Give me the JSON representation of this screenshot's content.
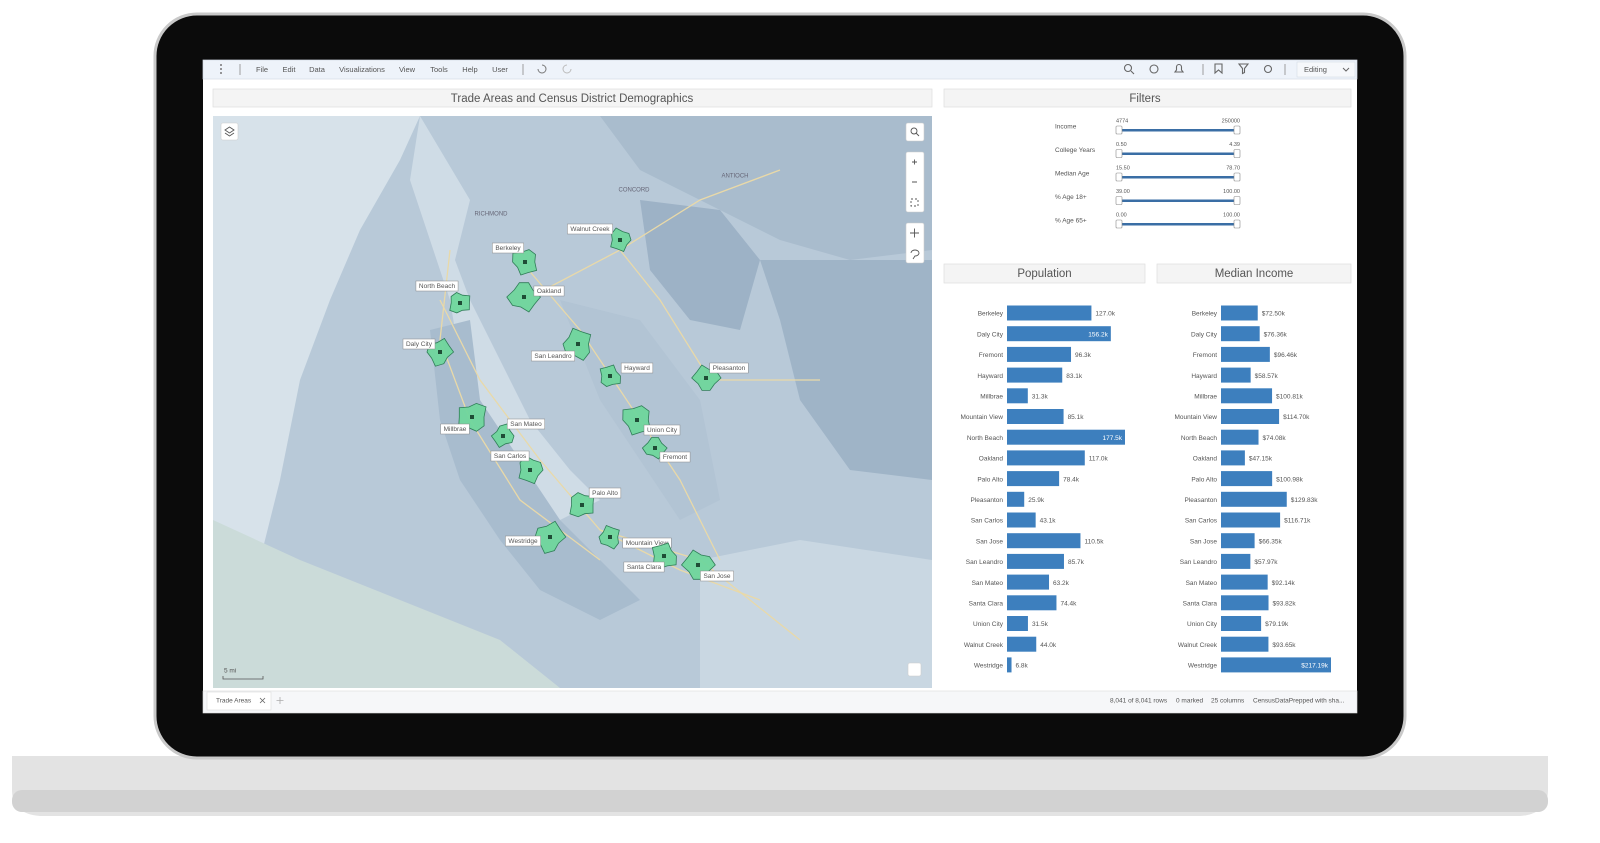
{
  "toolbar": {
    "menu": [
      "File",
      "Edit",
      "Data",
      "Visualizations",
      "View",
      "Tools",
      "Help",
      "User"
    ],
    "mode": "Editing"
  },
  "map": {
    "title": "Trade Areas and Census District Demographics",
    "place_names": [
      "CONCORD",
      "ANTIOCH",
      "RICHMOND"
    ],
    "trade_areas": [
      "Walnut Creek",
      "Berkeley",
      "Oakland",
      "North Beach",
      "Daly City",
      "San Leandro",
      "Hayward",
      "Pleasanton",
      "Millbrae",
      "San Mateo",
      "San Carlos",
      "Union City",
      "Fremont",
      "Palo Alto",
      "Westridge",
      "Mountain View",
      "Santa Clara",
      "San Jose"
    ],
    "scale": "5 mi"
  },
  "filters": {
    "title": "Filters",
    "items": [
      {
        "label": "Income",
        "min": "4774",
        "max": "250000"
      },
      {
        "label": "College Years",
        "min": "0.50",
        "max": "4.39"
      },
      {
        "label": "Median Age",
        "min": "15.50",
        "max": "78.70"
      },
      {
        "label": "% Age 18+",
        "min": "39.00",
        "max": "100.00"
      },
      {
        "label": "% Age 65+",
        "min": "0.00",
        "max": "100.00"
      }
    ]
  },
  "chart_data": [
    {
      "type": "bar",
      "orientation": "horizontal",
      "title": "Population",
      "color": "#3d7fbe",
      "categories": [
        "Berkeley",
        "Daly City",
        "Fremont",
        "Hayward",
        "Millbrae",
        "Mountain View",
        "North Beach",
        "Oakland",
        "Palo Alto",
        "Pleasanton",
        "San Carlos",
        "San Jose",
        "San Leandro",
        "San Mateo",
        "Santa Clara",
        "Union City",
        "Walnut Creek",
        "Westridge"
      ],
      "values": [
        127000,
        156200,
        96300,
        83100,
        31300,
        85100,
        177500,
        117000,
        78400,
        25900,
        43100,
        110500,
        85700,
        63200,
        74400,
        31500,
        44000,
        6800
      ],
      "value_labels": [
        "127.0k",
        "156.2k",
        "96.3k",
        "83.1k",
        "31.3k",
        "85.1k",
        "177.5k",
        "117.0k",
        "78.4k",
        "25.9k",
        "43.1k",
        "110.5k",
        "85.7k",
        "63.2k",
        "74.4k",
        "31.5k",
        "44.0k",
        "6.8k"
      ]
    },
    {
      "type": "bar",
      "orientation": "horizontal",
      "title": "Median Income",
      "color": "#3d7fbe",
      "categories": [
        "Berkeley",
        "Daly City",
        "Fremont",
        "Hayward",
        "Millbrae",
        "Mountain View",
        "North Beach",
        "Oakland",
        "Palo Alto",
        "Pleasanton",
        "San Carlos",
        "San Jose",
        "San Leandro",
        "San Mateo",
        "Santa Clara",
        "Union City",
        "Walnut Creek",
        "Westridge"
      ],
      "values": [
        72500,
        76360,
        96460,
        58570,
        100810,
        114700,
        74080,
        47150,
        100980,
        129830,
        116710,
        66350,
        57970,
        92140,
        93820,
        79190,
        93650,
        217190
      ],
      "value_labels": [
        "$72.50k",
        "$76.36k",
        "$96.46k",
        "$58.57k",
        "$100.81k",
        "$114.70k",
        "$74.08k",
        "$47.15k",
        "$100.98k",
        "$129.83k",
        "$116.71k",
        "$66.35k",
        "$57.97k",
        "$92.14k",
        "$93.82k",
        "$79.19k",
        "$93.65k",
        "$217.19k"
      ]
    }
  ],
  "status_bar": {
    "tab": "Trade Areas",
    "rows": "8,041 of 8,041 rows",
    "marked": "0 marked",
    "columns": "25 columns",
    "source": "CensusDataPrepped with sha..."
  }
}
